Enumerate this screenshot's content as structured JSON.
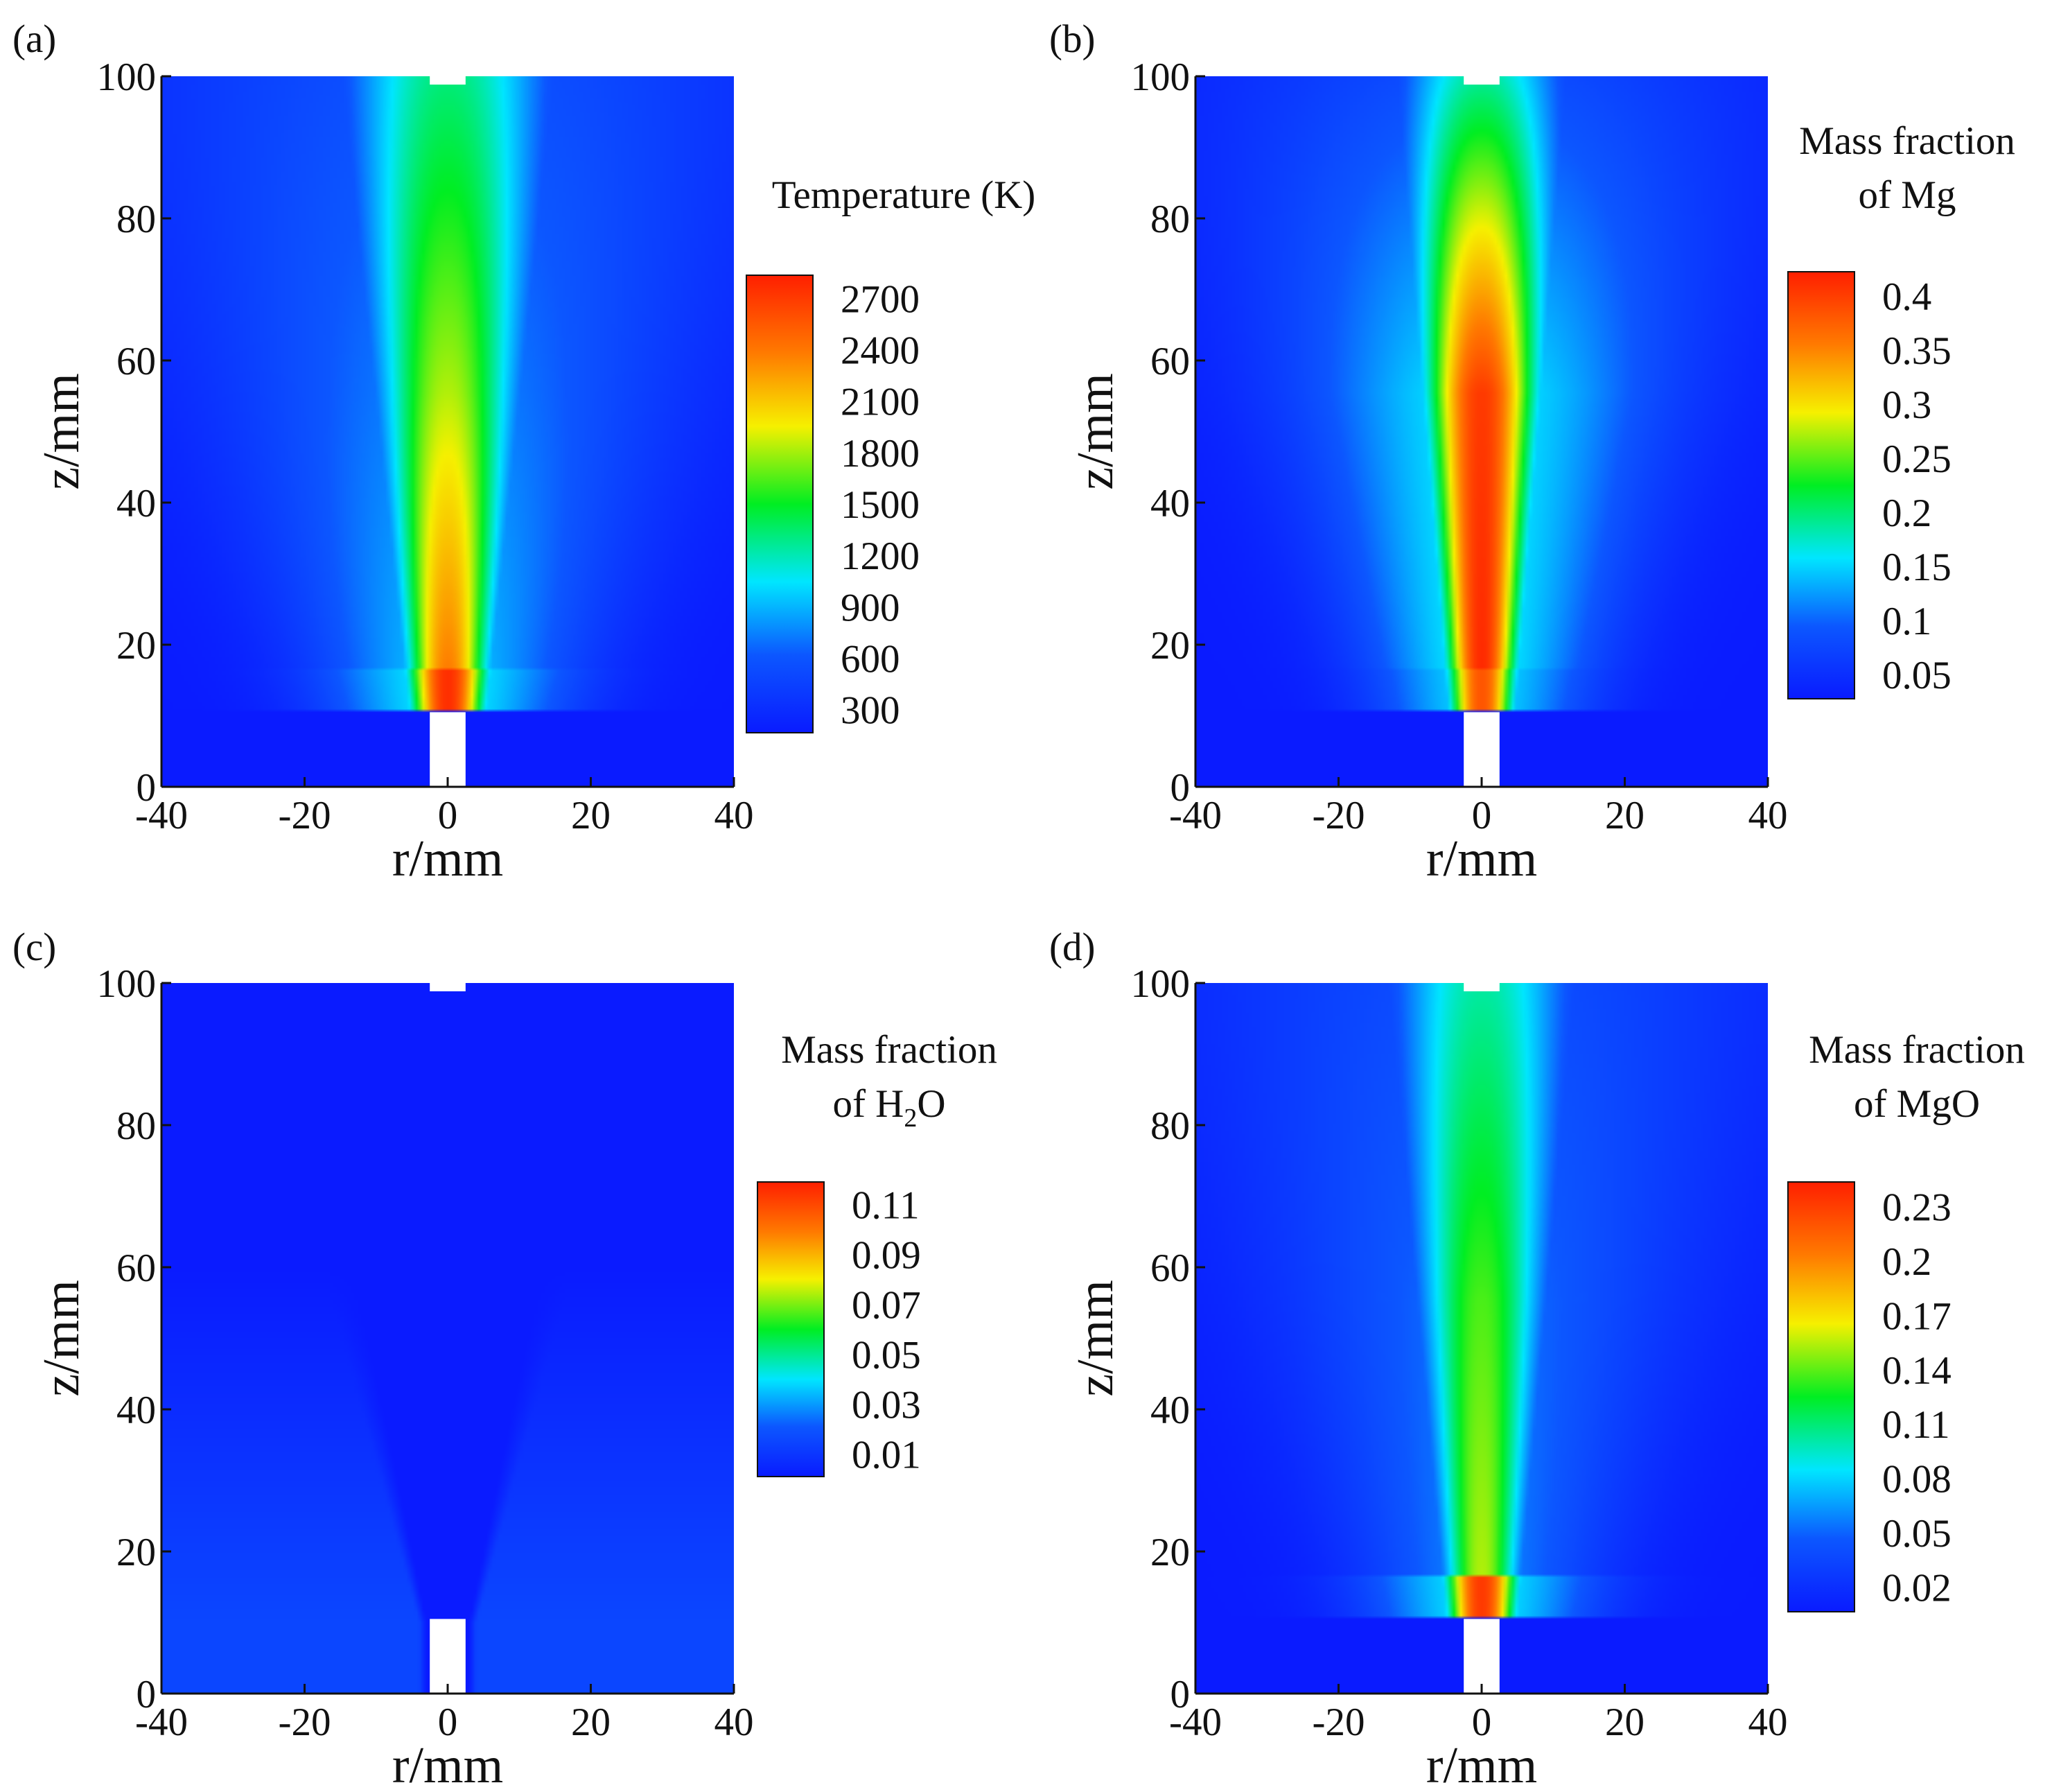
{
  "figure": {
    "colormap": [
      "#0a1bff",
      "#0c57ff",
      "#00e6ff",
      "#00ee22",
      "#f6f000",
      "#ff7a00",
      "#ff1f00"
    ],
    "background_color": "#1c28f0",
    "nozzle_color": "#ffffff"
  },
  "chart_data": [
    {
      "type": "heatmap",
      "panel_label": "(a)",
      "title": "",
      "xlabel": "r/mm",
      "ylabel": "z/mm",
      "xlim": [
        -40,
        40
      ],
      "ylim": [
        0,
        100
      ],
      "x_ticks": [
        "-40",
        "-20",
        "0",
        "20",
        "40"
      ],
      "y_ticks": [
        "0",
        "20",
        "40",
        "60",
        "80",
        "100"
      ],
      "colorbar": {
        "title_lines": [
          "Temperature (K)"
        ],
        "ticks": [
          "2700",
          "2400",
          "2100",
          "1800",
          "1500",
          "1200",
          "900",
          "600",
          "300"
        ],
        "min": 300,
        "max": 2700
      },
      "field": {
        "core_max": 0.83,
        "core_mid": 0.62,
        "core_top": 0.43,
        "spread": 1.0,
        "inlet_hot": 0.97,
        "background": 0.0,
        "invert": false
      }
    },
    {
      "type": "heatmap",
      "panel_label": "(b)",
      "title": "",
      "xlabel": "r/mm",
      "ylabel": "z/mm",
      "xlim": [
        -40,
        40
      ],
      "ylim": [
        0,
        100
      ],
      "x_ticks": [
        "-40",
        "-20",
        "0",
        "20",
        "40"
      ],
      "y_ticks": [
        "0",
        "20",
        "40",
        "60",
        "80",
        "100"
      ],
      "colorbar": {
        "title_lines": [
          "Mass fraction",
          "of Mg"
        ],
        "ticks": [
          "0.4",
          "0.35",
          "0.3",
          "0.25",
          "0.2",
          "0.15",
          "0.1",
          "0.05"
        ],
        "min": 0.05,
        "max": 0.4
      },
      "field": {
        "core_max": 0.98,
        "core_mid": 0.95,
        "core_top": 0.4,
        "spread": 0.75,
        "inlet_hot": 0.9,
        "background": 0.0,
        "invert": false
      }
    },
    {
      "type": "heatmap",
      "panel_label": "(c)",
      "title": "",
      "xlabel": "r/mm",
      "ylabel": "z/mm",
      "xlim": [
        -40,
        40
      ],
      "ylim": [
        0,
        100
      ],
      "x_ticks": [
        "-40",
        "-20",
        "0",
        "20",
        "40"
      ],
      "y_ticks": [
        "0",
        "20",
        "40",
        "60",
        "80",
        "100"
      ],
      "colorbar": {
        "title_lines": [
          "Mass fraction",
          "of H",
          "2",
          "O"
        ],
        "ticks": [
          "0.11",
          "0.09",
          "0.07",
          "0.05",
          "0.03",
          "0.01"
        ],
        "min": 0.01,
        "max": 0.11
      },
      "field": {
        "core_max": 0.0,
        "core_mid": 0.0,
        "core_top": 0.0,
        "spread": 1.0,
        "inlet_hot": 0.0,
        "background": 0.12,
        "invert": true
      }
    },
    {
      "type": "heatmap",
      "panel_label": "(d)",
      "title": "",
      "xlabel": "r/mm",
      "ylabel": "z/mm",
      "xlim": [
        -40,
        40
      ],
      "ylim": [
        0,
        100
      ],
      "x_ticks": [
        "-40",
        "-20",
        "0",
        "20",
        "40"
      ],
      "y_ticks": [
        "0",
        "20",
        "40",
        "60",
        "80",
        "100"
      ],
      "colorbar": {
        "title_lines": [
          "Mass fraction",
          "of MgO"
        ],
        "ticks": [
          "0.23",
          "0.2",
          "0.17",
          "0.14",
          "0.11",
          "0.08",
          "0.05",
          "0.02"
        ],
        "min": 0.02,
        "max": 0.23
      },
      "field": {
        "core_max": 0.62,
        "core_mid": 0.55,
        "core_top": 0.4,
        "spread": 0.85,
        "inlet_hot": 0.95,
        "background": 0.0,
        "invert": false
      }
    }
  ]
}
